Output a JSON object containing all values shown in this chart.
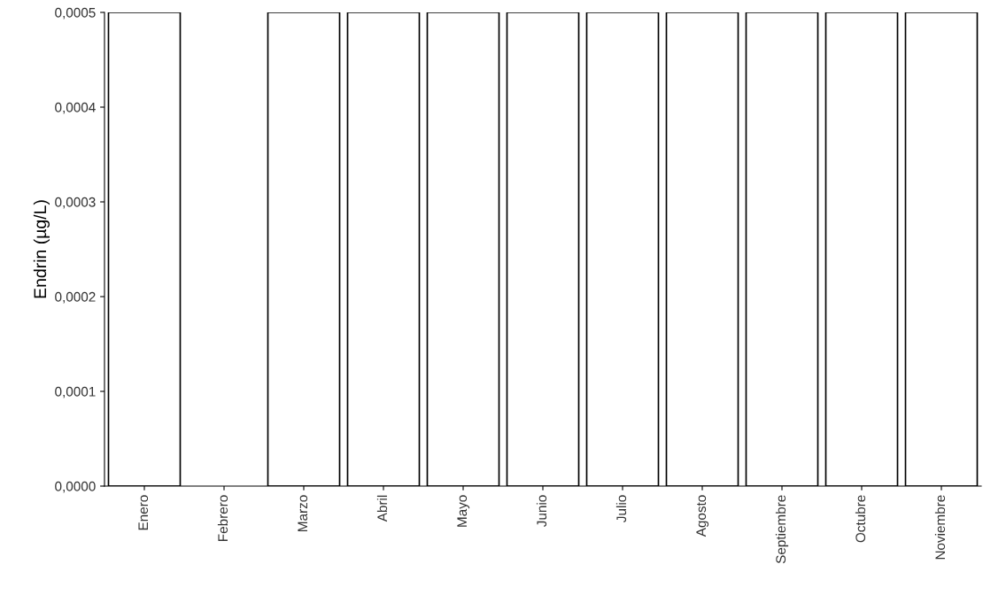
{
  "chart_data": {
    "type": "bar",
    "ylabel": "Endrin (µg/L)",
    "categories": [
      "Enero",
      "Febrero",
      "Marzo",
      "Abril",
      "Mayo",
      "Junio",
      "Julio",
      "Agosto",
      "Septiembre",
      "Octubre",
      "Noviembre"
    ],
    "values": [
      0.0005,
      null,
      0.0005,
      0.0005,
      0.0005,
      0.0005,
      0.0005,
      0.0005,
      0.0005,
      0.0005,
      0.0005
    ],
    "color": "#ffffff",
    "ylim": [
      0,
      0.0005
    ],
    "yticks": [
      {
        "value": 0,
        "label": "0,0000"
      },
      {
        "value": 0.0001,
        "label": "0,0001"
      },
      {
        "value": 0.0002,
        "label": "0,0002"
      },
      {
        "value": 0.0003,
        "label": "0,0003"
      },
      {
        "value": 0.0004,
        "label": "0,0004"
      },
      {
        "value": 0.0005,
        "label": "0,0005"
      }
    ],
    "grid": false,
    "legend": false
  }
}
